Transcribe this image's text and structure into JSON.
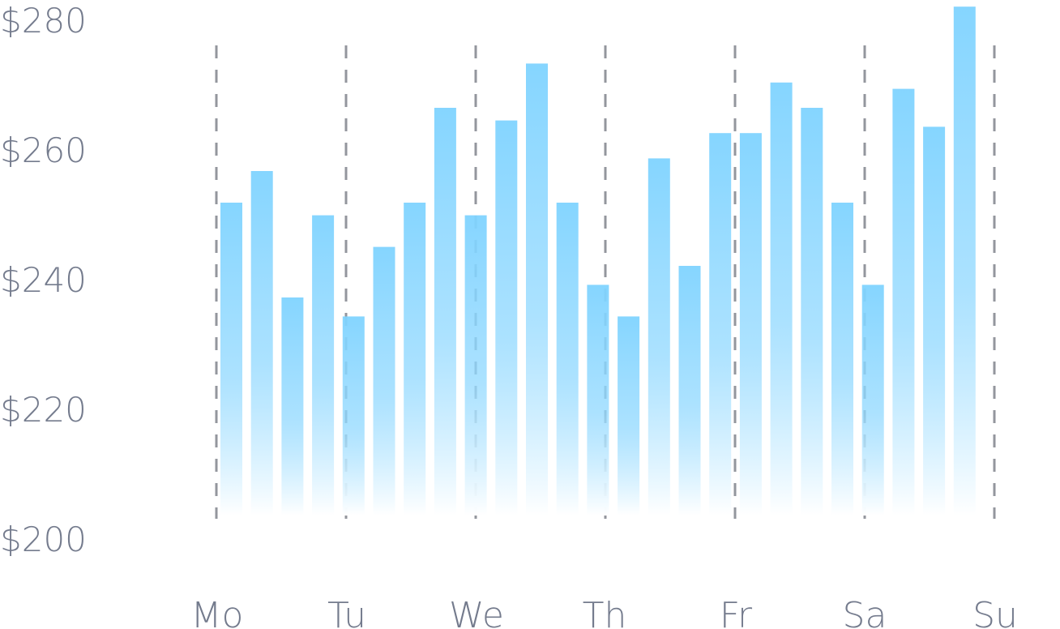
{
  "chart_data": {
    "type": "bar",
    "y_ticks": [
      "$200",
      "$220",
      "$240",
      "$260",
      "$280"
    ],
    "x_ticks": [
      "Mo",
      "Tu",
      "We",
      "Th",
      "Fr",
      "Sa",
      "Su"
    ],
    "values": [
      250,
      255,
      235,
      248,
      232,
      243,
      250,
      265,
      248,
      263,
      272,
      250,
      237,
      232,
      257,
      240,
      261,
      261,
      269,
      265,
      250,
      237,
      268,
      262,
      281
    ],
    "ylim": [
      200,
      280
    ],
    "grid": "vertical-dashed",
    "colors": {
      "bar_top": "#7fd3ff",
      "bar_bottom": "#ffffff",
      "guide": "#6a6e78",
      "text": "#747b8d"
    }
  }
}
